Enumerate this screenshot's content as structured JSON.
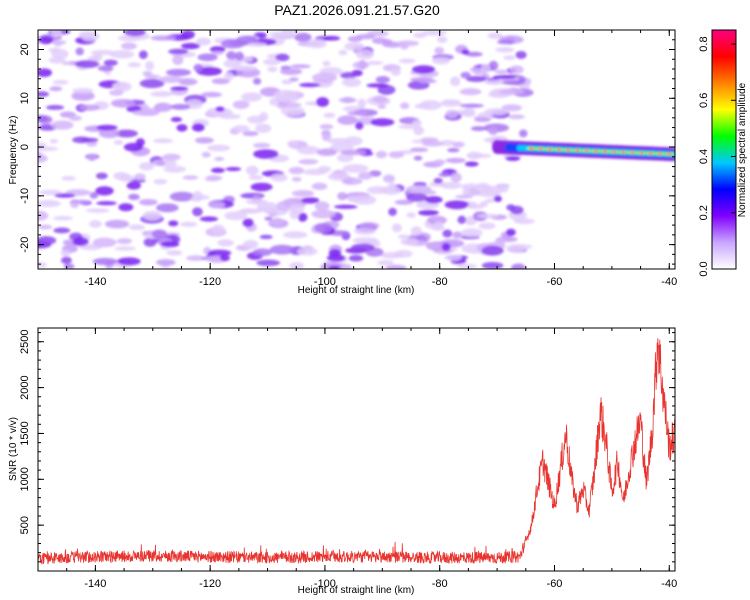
{
  "title": "PAZ1.2026.091.21.57.G20",
  "chart_data": [
    {
      "type": "heatmap",
      "xlabel": "Height of straight line (km)",
      "ylabel": "Frequency (Hz)",
      "xlim": [
        -150,
        -39
      ],
      "ylim": [
        -25,
        24
      ],
      "x_ticks": [
        -140,
        -120,
        -100,
        -80,
        -60,
        -40
      ],
      "y_ticks": [
        -20,
        -10,
        0,
        10,
        20
      ],
      "noise_region_x": [
        -150,
        -65
      ],
      "signal_track": {
        "x_start": -70,
        "x_end": -39,
        "frequency_start": 0,
        "frequency_end": -1.5
      },
      "colorbar": {
        "label": "Normalized spectral amplitude",
        "range": [
          0.0,
          0.85
        ],
        "ticks": [
          0.0,
          0.2,
          0.4,
          0.6,
          0.8
        ],
        "colors": [
          "#ffffff",
          "#c9a6ff",
          "#8000ff",
          "#0000ff",
          "#00c8ff",
          "#00ff00",
          "#ffff00",
          "#ff8000",
          "#ff0000",
          "#ff0080"
        ]
      }
    },
    {
      "type": "line",
      "xlabel": "Height of straight line (km)",
      "ylabel": "SNR (10 * v/v)",
      "xlim": [
        -150,
        -39
      ],
      "ylim": [
        0,
        2650
      ],
      "x_ticks": [
        -140,
        -120,
        -100,
        -80,
        -60,
        -40
      ],
      "y_ticks": [
        500,
        1000,
        1500,
        2000,
        2500
      ],
      "line_color": "#e8332e",
      "series": [
        {
          "name": "SNR",
          "x": [
            -150,
            -140,
            -130,
            -120,
            -110,
            -100,
            -90,
            -80,
            -70,
            -66,
            -64,
            -63,
            -62,
            -61,
            -60,
            -59,
            -58,
            -57,
            -56,
            -55,
            -54,
            -53,
            -52,
            -51,
            -50,
            -49,
            -48,
            -47,
            -46,
            -45,
            -44,
            -43,
            -42,
            -41,
            -40,
            -39
          ],
          "y": [
            130,
            150,
            160,
            150,
            140,
            150,
            150,
            140,
            140,
            150,
            500,
            900,
            1200,
            950,
            700,
            1100,
            1500,
            1000,
            700,
            900,
            650,
            1100,
            1750,
            1400,
            850,
            1200,
            750,
            1100,
            1400,
            1650,
            950,
            1500,
            2550,
            1900,
            1350,
            1500
          ]
        }
      ]
    }
  ]
}
